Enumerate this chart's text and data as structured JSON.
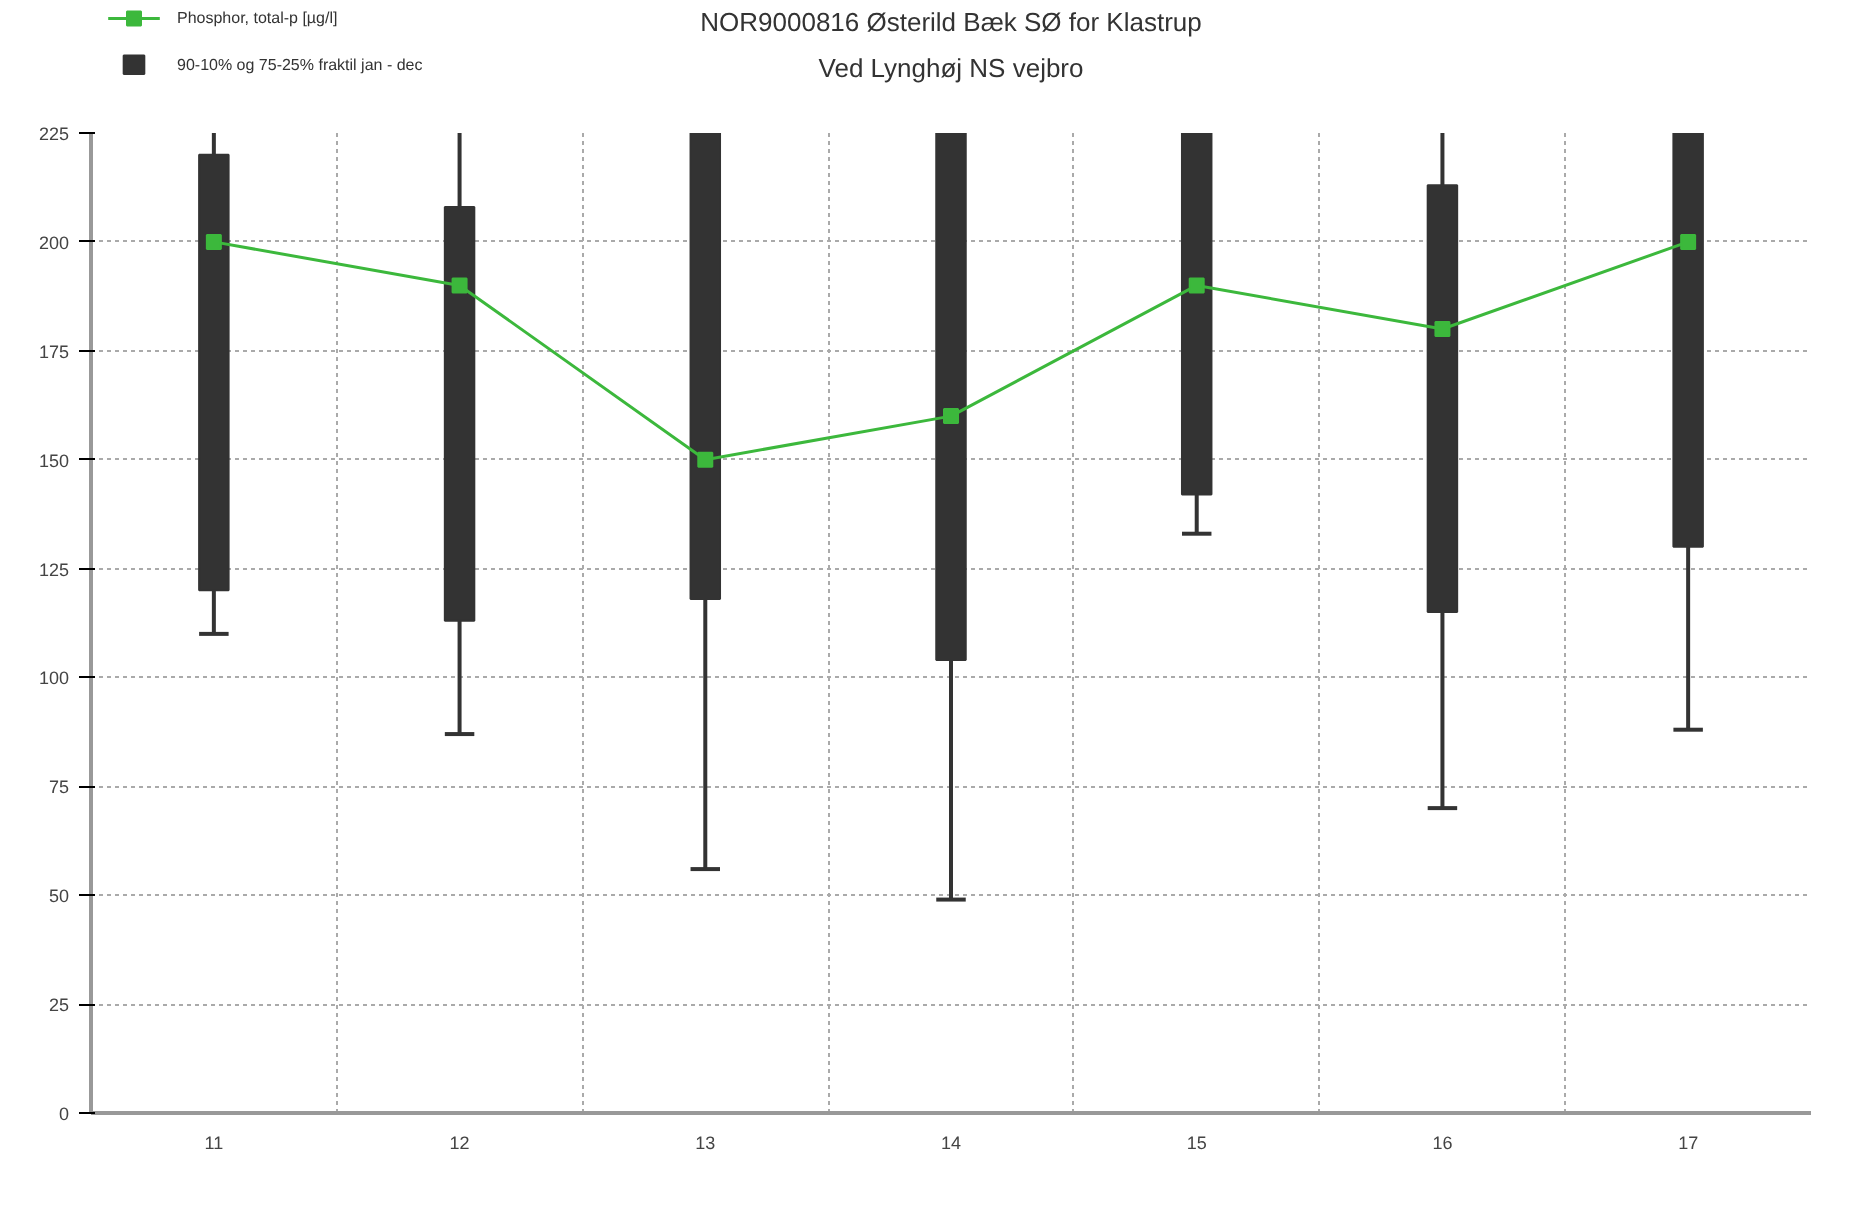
{
  "chart_data": {
    "type": "box",
    "title": "NOR9000816 Østerild Bæk SØ for Klastrup",
    "subtitle": "Ved Lynghøj NS vejbro",
    "categories": [
      "11",
      "12",
      "13",
      "14",
      "15",
      "16",
      "17"
    ],
    "ylim": [
      0,
      225
    ],
    "yticks": [
      0,
      25,
      50,
      75,
      100,
      125,
      150,
      175,
      200,
      225
    ],
    "grid": true,
    "legend": "top left",
    "series": [
      {
        "type": "box",
        "name": "90-10% og 75-25% fraktil jan - dec",
        "color": "#333333",
        "boxes": [
          {
            "low": 110,
            "q1": 120,
            "q3": 220,
            "high": 225
          },
          {
            "low": 87,
            "q1": 113,
            "q3": 208,
            "high": 225
          },
          {
            "low": 56,
            "q1": 118,
            "q3": 225,
            "high": null
          },
          {
            "low": 49,
            "q1": 104,
            "q3": 225,
            "high": null
          },
          {
            "low": 133,
            "q1": 142,
            "q3": 225,
            "high": null
          },
          {
            "low": 70,
            "q1": 115,
            "q3": 213,
            "high": 225
          },
          {
            "low": 88,
            "q1": 130,
            "q3": 225,
            "high": null
          }
        ]
      },
      {
        "type": "line",
        "name": "Phosphor, total-p [µg/l]",
        "color": "#3cb83c",
        "marker": "square",
        "values": [
          200,
          190,
          150,
          160,
          190,
          180,
          200
        ]
      }
    ]
  }
}
